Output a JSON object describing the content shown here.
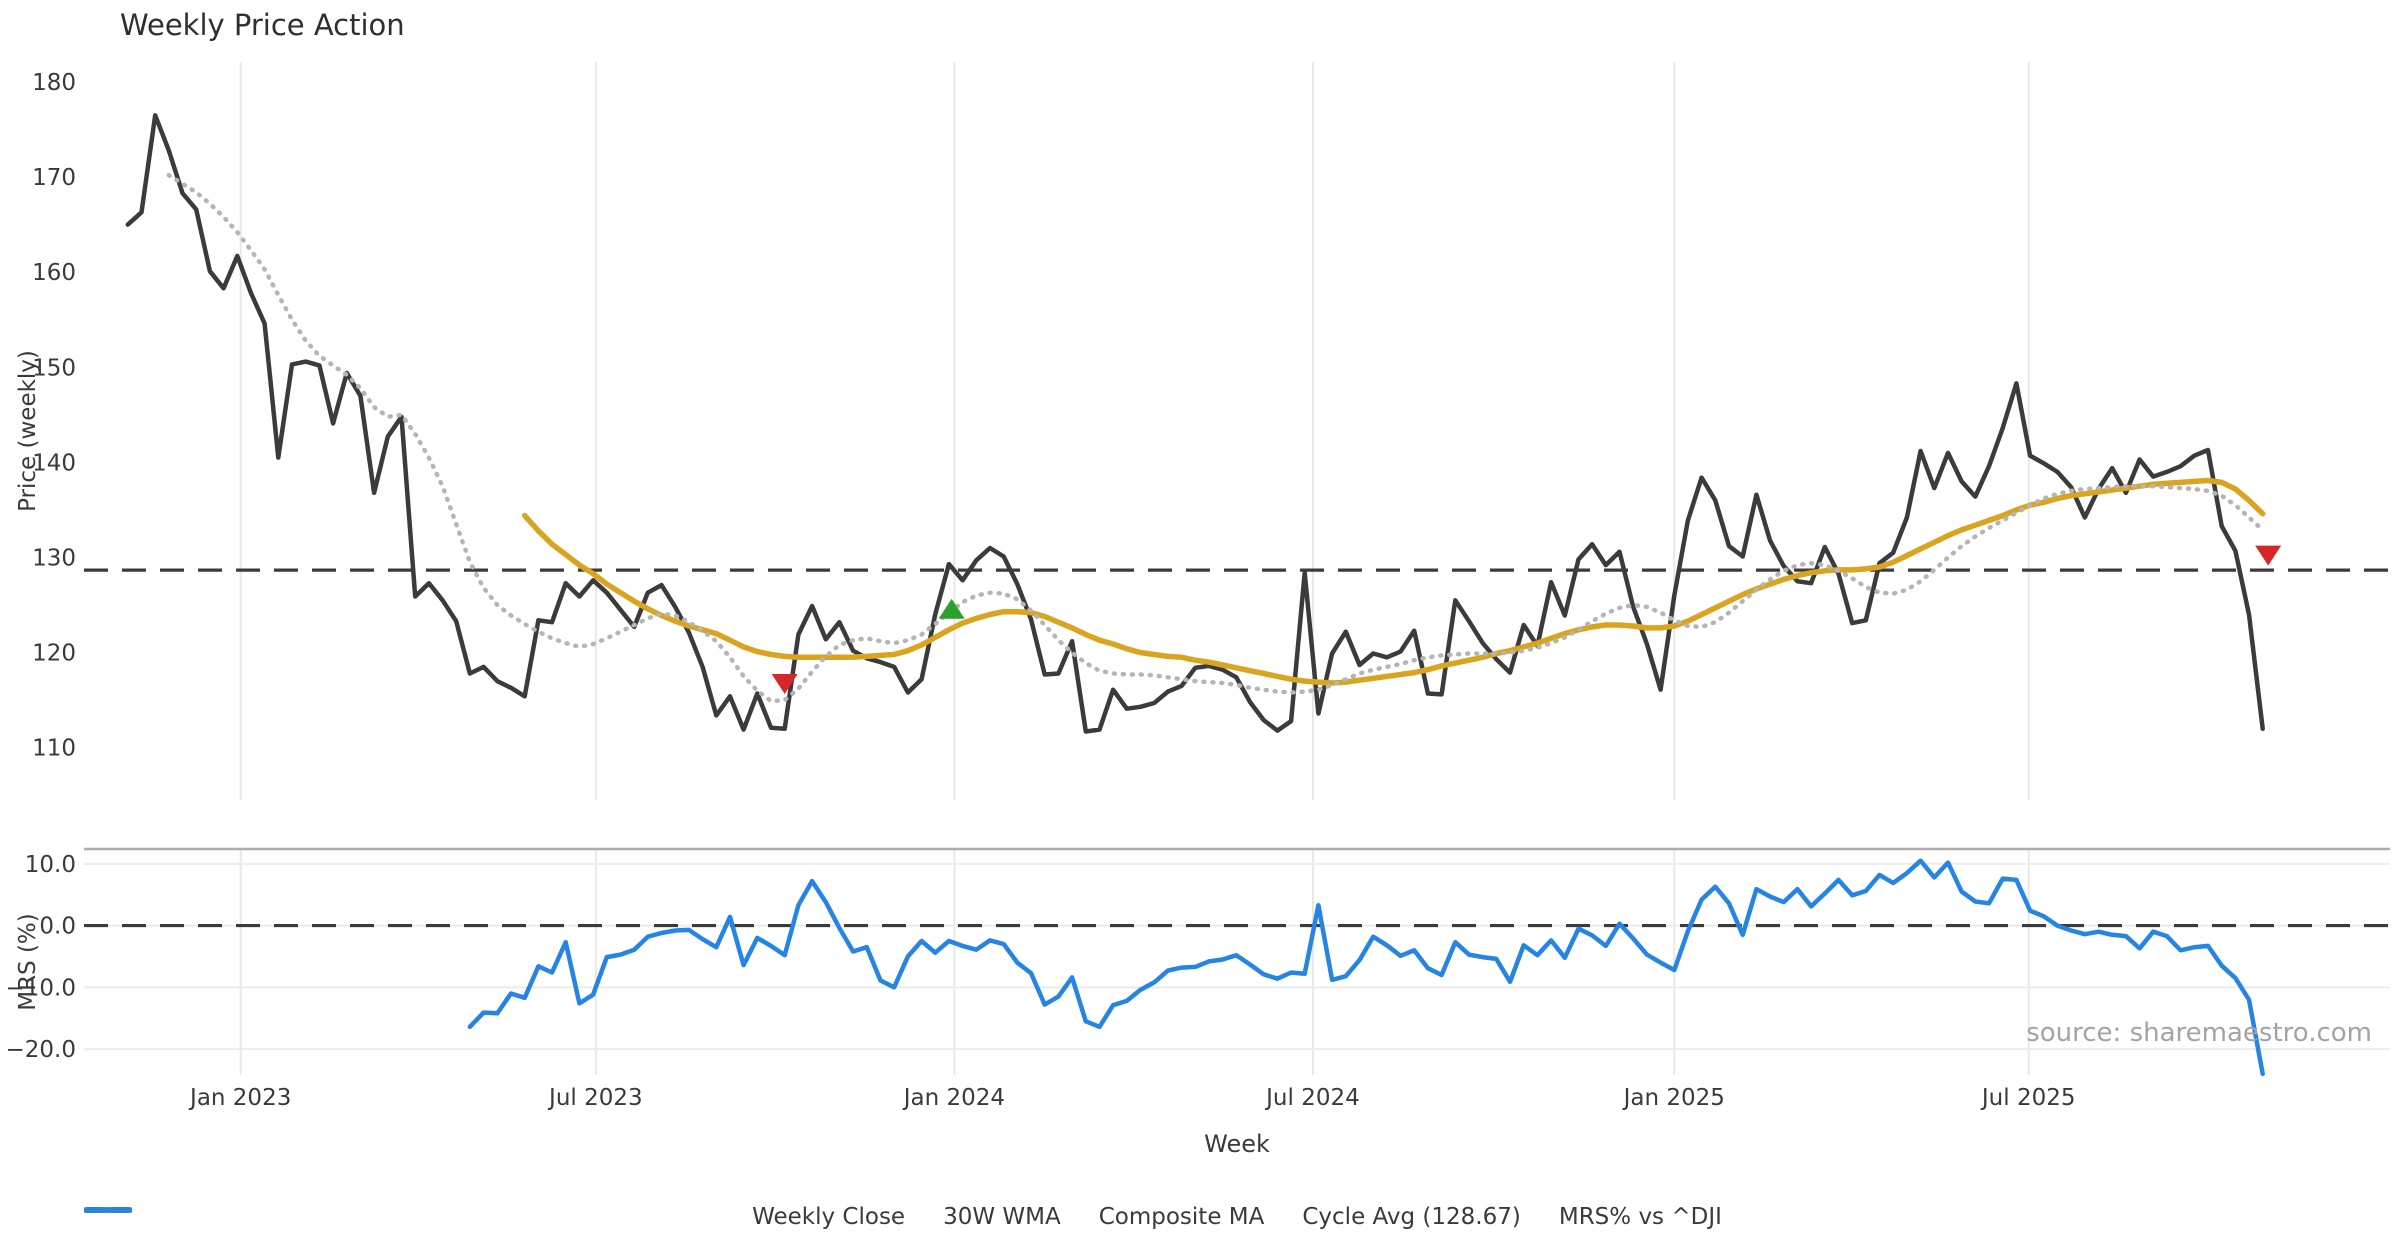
{
  "title": "Weekly Price Action",
  "source_note": "source: sharemaestro.com",
  "axis": {
    "xlabel": "Week",
    "price_ylabel": "Price (weekly)",
    "mrs_ylabel": "MRS (%)"
  },
  "colors": {
    "close": "#3b3b3b",
    "wma": "#d9a521",
    "composite": "#b5b5b5",
    "cycle": "#3b3b3b",
    "mrs": "#2584e4",
    "sell": "#d62728",
    "buy": "#2ca02c",
    "grid": "#e8e8e8",
    "grid_minor": "#ececec",
    "spine": "#adadad",
    "tick_text": "#3a3a3a"
  },
  "legend": {
    "items": [
      {
        "label": "Weekly Close",
        "style": "solid",
        "color_key": "close"
      },
      {
        "label": "30W WMA",
        "style": "solid",
        "color_key": "wma"
      },
      {
        "label": "Composite MA",
        "style": "dotted",
        "color_key": "composite"
      },
      {
        "label": "Cycle Avg (128.67)",
        "style": "dashed",
        "color_key": "cycle"
      },
      {
        "label": "MRS% vs ^DJI",
        "style": "solid",
        "color_key": "mrs"
      }
    ]
  },
  "chart_data": {
    "type": "line",
    "title": "Weekly Price Action",
    "xlabel": "Week",
    "x_unit": "week_index",
    "xlim": [
      -3.2,
      165.3
    ],
    "x_ticks": [
      {
        "pos": 8.25,
        "label": "Jan 2023"
      },
      {
        "pos": 34.2,
        "label": "Jul 2023"
      },
      {
        "pos": 60.4,
        "label": "Jan 2024"
      },
      {
        "pos": 86.6,
        "label": "Jul 2024"
      },
      {
        "pos": 113.0,
        "label": "Jan 2025"
      },
      {
        "pos": 138.9,
        "label": "Jul 2025"
      }
    ],
    "panels": [
      {
        "name": "price",
        "ylabel": "Price (weekly)",
        "ylim": [
          104.5,
          182.1
        ],
        "y_ticks": [
          {
            "v": 110,
            "label": "110"
          },
          {
            "v": 120,
            "label": "120"
          },
          {
            "v": 130,
            "label": "130"
          },
          {
            "v": 140,
            "label": "140"
          },
          {
            "v": 150,
            "label": "150"
          },
          {
            "v": 160,
            "label": "160"
          },
          {
            "v": 170,
            "label": "170"
          },
          {
            "v": 180,
            "label": "180"
          }
        ],
        "hline": {
          "value": 128.67,
          "label": "Cycle Avg (128.67)",
          "style": "dashed"
        },
        "series": [
          {
            "name": "Weekly Close",
            "color_key": "close",
            "style": "solid",
            "width": 4.5,
            "start_index": 0,
            "values": [
              165.0,
              166.3,
              176.5,
              172.8,
              168.3,
              166.6,
              160.1,
              158.3,
              161.7,
              157.8,
              154.6,
              140.5,
              150.3,
              150.6,
              150.2,
              144.1,
              149.4,
              147.0,
              136.8,
              142.7,
              144.8,
              125.9,
              127.3,
              125.5,
              123.3,
              117.8,
              118.5,
              117.0,
              116.3,
              115.4,
              123.4,
              123.2,
              127.3,
              125.9,
              127.6,
              126.3,
              124.5,
              122.7,
              126.3,
              127.1,
              124.8,
              122.1,
              118.5,
              113.4,
              115.4,
              111.9,
              115.7,
              112.1,
              112.0,
              121.9,
              124.9,
              121.4,
              123.2,
              120.2,
              119.4,
              119.0,
              118.5,
              115.8,
              117.2,
              124.0,
              129.3,
              127.6,
              129.7,
              131.0,
              130.1,
              127.2,
              123.5,
              117.7,
              117.8,
              121.2,
              111.7,
              111.9,
              116.1,
              114.1,
              114.3,
              114.7,
              115.9,
              116.5,
              118.4,
              118.6,
              118.2,
              117.4,
              114.8,
              112.9,
              111.8,
              112.8,
              128.4,
              113.6,
              119.9,
              122.2,
              118.7,
              119.9,
              119.5,
              120.1,
              122.3,
              115.7,
              115.6,
              125.5,
              123.3,
              121.0,
              119.3,
              117.9,
              122.9,
              120.7,
              127.4,
              123.9,
              129.8,
              131.4,
              129.2,
              130.6,
              124.8,
              120.9,
              116.1,
              126.0,
              133.9,
              138.4,
              136.0,
              131.2,
              130.1,
              136.6,
              131.8,
              129.1,
              127.5,
              127.3,
              131.1,
              128.3,
              123.1,
              123.4,
              129.4,
              130.5,
              134.2,
              141.2,
              137.3,
              141.0,
              138.0,
              136.4,
              139.6,
              143.6,
              148.3,
              140.7,
              139.9,
              139.0,
              137.4,
              134.2,
              137.2,
              139.4,
              136.8,
              140.3,
              138.5,
              139.0,
              139.6,
              140.7,
              141.3,
              133.3,
              130.7,
              124.0,
              112.0
            ]
          },
          {
            "name": "30W WMA",
            "color_key": "wma",
            "style": "solid",
            "width": 5.5,
            "start_index": 29,
            "values": [
              134.4,
              132.8,
              131.4,
              130.3,
              129.2,
              128.3,
              127.2,
              126.3,
              125.4,
              124.6,
              123.9,
              123.3,
              122.8,
              122.4,
              122.0,
              121.3,
              120.6,
              120.1,
              119.8,
              119.6,
              119.5,
              119.5,
              119.5,
              119.5,
              119.5,
              119.6,
              119.7,
              119.8,
              120.2,
              120.8,
              121.6,
              122.4,
              123.1,
              123.6,
              124.0,
              124.3,
              124.3,
              124.2,
              123.8,
              123.2,
              122.6,
              121.9,
              121.3,
              120.9,
              120.4,
              120.0,
              119.8,
              119.6,
              119.5,
              119.2,
              119.0,
              118.7,
              118.4,
              118.1,
              117.8,
              117.5,
              117.2,
              117.0,
              116.9,
              116.8,
              116.9,
              117.1,
              117.3,
              117.5,
              117.7,
              117.9,
              118.2,
              118.6,
              118.9,
              119.2,
              119.5,
              119.9,
              120.2,
              120.6,
              121.0,
              121.5,
              122.0,
              122.4,
              122.7,
              122.9,
              122.9,
              122.8,
              122.6,
              122.6,
              122.8,
              123.3,
              124.0,
              124.7,
              125.4,
              126.1,
              126.7,
              127.2,
              127.7,
              128.1,
              128.4,
              128.6,
              128.7,
              128.7,
              128.8,
              129.0,
              129.5,
              130.2,
              130.9,
              131.6,
              132.3,
              132.9,
              133.4,
              133.9,
              134.4,
              135.0,
              135.5,
              135.8,
              136.2,
              136.5,
              136.7,
              136.9,
              137.1,
              137.3,
              137.5,
              137.7,
              137.8,
              137.9,
              138.0,
              138.1,
              137.9,
              137.2,
              136.0,
              134.6
            ]
          },
          {
            "name": "Composite MA",
            "color_key": "composite",
            "style": "dotted",
            "width": 4.5,
            "start_index": 3,
            "values": [
              170.2,
              169.3,
              168.4,
              167.2,
              165.8,
              164.2,
              162.3,
              160.3,
              157.6,
              155.0,
              152.8,
              151.2,
              150.2,
              149.2,
              147.8,
              145.8,
              144.8,
              145.0,
              143.0,
              140.5,
              137.5,
              133.5,
              129.5,
              126.8,
              125.0,
              123.9,
              123.0,
              122.2,
              121.5,
              121.0,
              120.6,
              120.9,
              121.5,
              122.2,
              122.9,
              123.6,
              124.1,
              123.9,
              123.2,
              122.3,
              121.2,
              119.5,
              117.5,
              116.0,
              114.9,
              115.0,
              116.2,
              118.0,
              119.6,
              120.8,
              121.3,
              121.5,
              121.2,
              121.0,
              121.3,
              121.9,
              123.0,
              124.2,
              125.3,
              126.0,
              126.3,
              126.2,
              125.6,
              124.4,
              122.9,
              121.3,
              120.0,
              118.9,
              118.1,
              117.8,
              117.7,
              117.7,
              117.6,
              117.4,
              117.2,
              117.0,
              116.9,
              116.8,
              116.6,
              116.3,
              116.1,
              115.9,
              115.8,
              115.9,
              116.1,
              116.6,
              117.2,
              117.8,
              118.2,
              118.5,
              118.8,
              119.2,
              119.5,
              119.7,
              119.8,
              119.9,
              119.9,
              119.9,
              120.0,
              120.2,
              120.5,
              121.0,
              121.6,
              122.4,
              123.3,
              124.1,
              124.7,
              125.0,
              124.8,
              124.2,
              123.4,
              122.8,
              122.7,
              123.2,
              124.2,
              125.4,
              126.6,
              127.7,
              128.6,
              129.2,
              129.4,
              129.2,
              128.6,
              127.8,
              126.9,
              126.3,
              126.2,
              126.6,
              127.5,
              128.7,
              130.0,
              131.2,
              132.2,
              133.1,
              133.9,
              134.7,
              135.5,
              136.2,
              136.7,
              137.0,
              137.2,
              137.3,
              137.4,
              137.5,
              137.5,
              137.5,
              137.4,
              137.3,
              137.2,
              137.0,
              136.5,
              135.5,
              134.2,
              132.9
            ]
          }
        ],
        "markers": {
          "sell": [
            {
              "pos": 48.0,
              "value": 116.8
            },
            {
              "pos": 156.4,
              "value": 130.3
            }
          ],
          "buy": [
            {
              "pos": 60.2,
              "value": 124.5
            }
          ]
        }
      },
      {
        "name": "mrs",
        "ylabel": "MRS (%)",
        "ylim": [
          -24.2,
          12.4
        ],
        "y_ticks": [
          {
            "v": 10,
            "label": "10.0"
          },
          {
            "v": 0,
            "label": "0.0"
          },
          {
            "v": -10,
            "label": "−10.0"
          },
          {
            "v": -20,
            "label": "−20.0"
          }
        ],
        "hline": {
          "value": 0,
          "label": "zero line",
          "style": "dashed"
        },
        "grid_values": [
          10,
          0,
          -10,
          -20
        ],
        "series": [
          {
            "name": "MRS% vs ^DJI",
            "color_key": "mrs",
            "style": "solid",
            "width": 4.5,
            "start_index": 25,
            "values": [
              -16.4,
              -14.1,
              -14.2,
              -11.0,
              -11.7,
              -6.6,
              -7.6,
              -2.7,
              -12.6,
              -11.2,
              -5.1,
              -4.7,
              -3.9,
              -1.8,
              -1.2,
              -0.8,
              -0.7,
              -2.2,
              -3.5,
              1.4,
              -6.4,
              -2.0,
              -3.3,
              -4.8,
              3.3,
              7.2,
              3.8,
              -0.4,
              -4.2,
              -3.5,
              -8.9,
              -10.0,
              -5.0,
              -2.5,
              -4.4,
              -2.5,
              -3.3,
              -3.9,
              -2.4,
              -3.0,
              -6.0,
              -7.7,
              -12.8,
              -11.5,
              -8.4,
              -15.5,
              -16.4,
              -12.9,
              -12.2,
              -10.4,
              -9.2,
              -7.3,
              -6.8,
              -6.7,
              -5.8,
              -5.5,
              -4.8,
              -6.3,
              -7.9,
              -8.6,
              -7.6,
              -7.8,
              3.3,
              -8.8,
              -8.2,
              -5.6,
              -1.8,
              -3.2,
              -4.9,
              -4.0,
              -6.9,
              -8.0,
              -2.7,
              -4.7,
              -5.1,
              -5.4,
              -9.1,
              -3.2,
              -4.8,
              -2.4,
              -5.2,
              -0.5,
              -1.6,
              -3.3,
              0.3,
              -2.1,
              -4.7,
              -6.0,
              -7.2,
              -0.9,
              4.2,
              6.3,
              3.6,
              -1.5,
              5.9,
              4.7,
              3.8,
              5.9,
              3.1,
              5.2,
              7.4,
              4.9,
              5.6,
              8.2,
              6.9,
              8.5,
              10.5,
              7.8,
              10.2,
              5.5,
              3.9,
              3.6,
              7.6,
              7.4,
              2.4,
              1.5,
              0.0,
              -0.8,
              -1.4,
              -1.0,
              -1.5,
              -1.7,
              -3.7,
              -1.0,
              -1.7,
              -4.0,
              -3.5,
              -3.3,
              -6.5,
              -8.5,
              -12.0,
              -24.0
            ]
          }
        ]
      }
    ]
  }
}
